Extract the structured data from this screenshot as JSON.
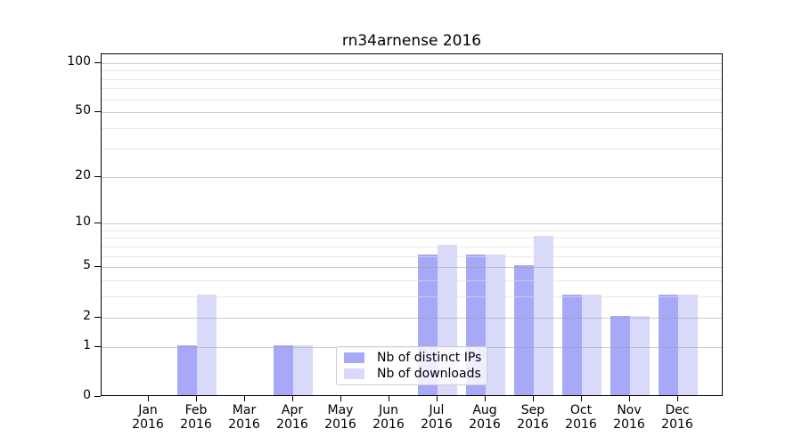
{
  "chart_data": {
    "type": "bar",
    "title": "rn34arnense 2016",
    "categories": [
      "Jan",
      "Feb",
      "Mar",
      "Apr",
      "May",
      "Jun",
      "Jul",
      "Aug",
      "Sep",
      "Oct",
      "Nov",
      "Dec"
    ],
    "year_label": "2016",
    "series": [
      {
        "name": "Nb of distinct IPs",
        "color": "#a8a8f8",
        "values": [
          0,
          1,
          0,
          1,
          0,
          0,
          6,
          6,
          5,
          3,
          2,
          3
        ]
      },
      {
        "name": "Nb of downloads",
        "color": "#d9d9fa",
        "values": [
          0,
          3,
          0,
          1,
          0,
          0,
          7,
          6,
          8,
          3,
          2,
          3
        ]
      }
    ],
    "yscale": "log1p",
    "ylim": [
      0,
      113
    ],
    "y_major_ticks": [
      100,
      50,
      20,
      10,
      5,
      2,
      1,
      0
    ],
    "y_minor_gridlines": [
      3,
      4,
      6,
      7,
      8,
      9,
      30,
      40,
      60,
      70,
      80,
      90
    ],
    "xlabel": "",
    "ylabel": "",
    "grid": true,
    "legend_position": "lower-center"
  }
}
